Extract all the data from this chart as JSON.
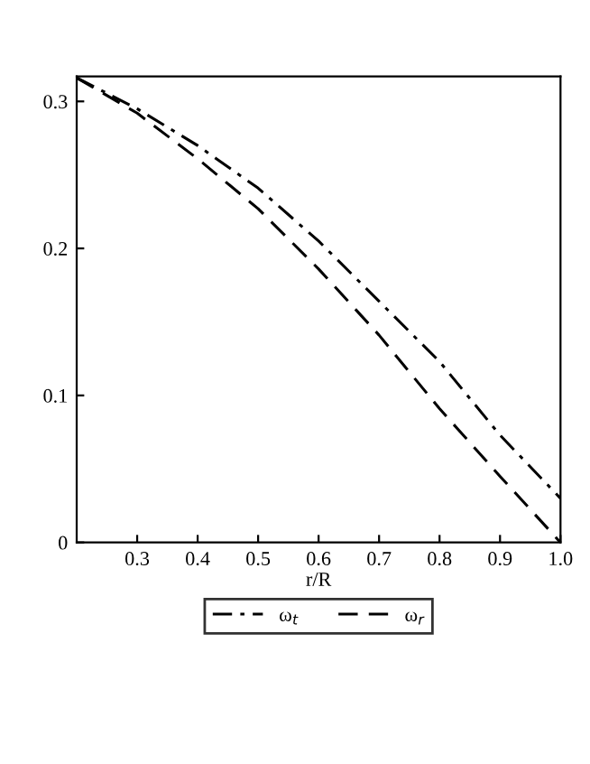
{
  "chart_data": {
    "type": "line",
    "xlabel": "r/R",
    "x": [
      0.2,
      0.3,
      0.4,
      0.5,
      0.6,
      0.7,
      0.8,
      0.9,
      1.0
    ],
    "series": [
      {
        "name": "ω$_{t}$",
        "color": "#000000",
        "line_style": "dashdot",
        "values": [
          0.316,
          0.295,
          0.27,
          0.241,
          0.205,
          0.164,
          0.123,
          0.073,
          0.03
        ]
      },
      {
        "name": "ω$_{r}$",
        "color": "#000000",
        "line_style": "dashed",
        "values": [
          0.316,
          0.292,
          0.261,
          0.227,
          0.186,
          0.141,
          0.091,
          0.045,
          0.0
        ]
      }
    ],
    "xlim": [
      0.2,
      1.0
    ],
    "ylim": [
      0,
      0.317
    ],
    "xticks": [
      0.3,
      0.4,
      0.5,
      0.6,
      0.7,
      0.8,
      0.9,
      {
        "value": 1.0,
        "label": "1.0"
      }
    ],
    "yticks": [
      0,
      0.1,
      0.2,
      0.3
    ],
    "grid": false,
    "legend": "bottom",
    "marker": "none"
  }
}
